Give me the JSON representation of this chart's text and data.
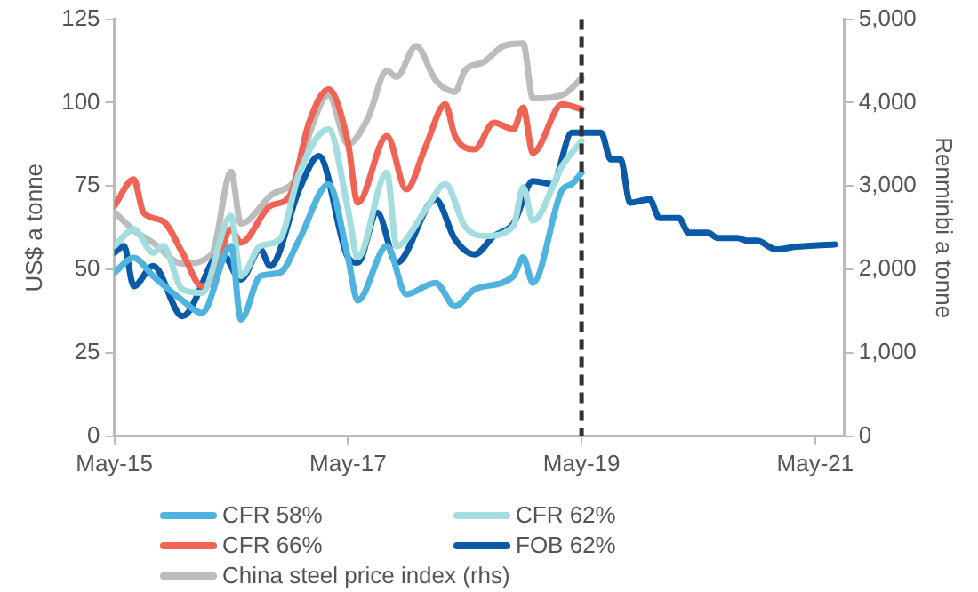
{
  "chart_data": {
    "type": "line",
    "ylabel": "US$ a tonne",
    "y2label": "Renminbi a tonne",
    "xlim": [
      "2015-05",
      "2021-08"
    ],
    "xticks": [
      {
        "value": "2015-05",
        "label": "May-15"
      },
      {
        "value": "2017-05",
        "label": "May-17"
      },
      {
        "value": "2019-05",
        "label": "May-19"
      },
      {
        "value": "2021-05",
        "label": "May-21"
      }
    ],
    "ylim": [
      0,
      125
    ],
    "yticks": [
      0,
      25,
      50,
      75,
      100,
      125
    ],
    "y2lim": [
      0,
      5000
    ],
    "y2ticks": [
      0,
      {
        "value": 1000,
        "label": "1,000"
      },
      {
        "value": 2000,
        "label": "2,000"
      },
      {
        "value": 3000,
        "label": "3,000"
      },
      {
        "value": 4000,
        "label": "4,000"
      },
      {
        "value": 5000,
        "label": "5,000"
      }
    ],
    "grid": false,
    "legend": "bottom",
    "marker": "none",
    "line_style": "solid",
    "ref_lines": [
      {
        "axis": "x",
        "value": "2019-05",
        "color": "#333333",
        "line_style": "dashed"
      }
    ],
    "series": [
      {
        "name": "CFR 58%",
        "color": "#4fb3e0",
        "x": [
          "2015-05",
          "2015-07",
          "2015-09",
          "2015-12",
          "2016-02",
          "2016-05",
          "2016-06",
          "2016-08",
          "2016-10",
          "2016-12",
          "2017-03",
          "2017-05",
          "2017-06",
          "2017-09",
          "2017-11",
          "2018-02",
          "2018-04",
          "2018-06",
          "2018-10",
          "2018-11",
          "2018-12",
          "2019-03",
          "2019-04",
          "2019-05"
        ],
        "values": [
          49,
          53.5,
          48,
          40.7,
          37,
          57,
          35,
          48,
          49,
          59,
          75.5,
          53.6,
          40.7,
          57,
          42.6,
          46,
          39,
          44,
          48,
          53.6,
          46,
          73.8,
          75.6,
          79
        ]
      },
      {
        "name": "CFR 62%",
        "color": "#a3dde0",
        "x": [
          "2015-05",
          "2015-07",
          "2015-09",
          "2015-10",
          "2015-12",
          "2016-02",
          "2016-05",
          "2016-06",
          "2016-08",
          "2016-10",
          "2016-12",
          "2017-03",
          "2017-05",
          "2017-06",
          "2017-09",
          "2017-10",
          "2018-01",
          "2018-03",
          "2018-05",
          "2018-07",
          "2018-10",
          "2018-11",
          "2018-12",
          "2019-03",
          "2019-05"
        ],
        "values": [
          57,
          62,
          55,
          57,
          44,
          43,
          66,
          48,
          57,
          59,
          79,
          92,
          68,
          53.6,
          79,
          57,
          68,
          75.6,
          63,
          60,
          63,
          74.7,
          64.6,
          81,
          88.5
        ]
      },
      {
        "name": "CFR 66%",
        "color": "#f06456",
        "x": [
          "2015-05",
          "2015-07",
          "2015-08",
          "2015-10",
          "2015-12",
          "2016-02",
          "2016-03",
          "2016-05",
          "2016-06",
          "2016-09",
          "2016-11",
          "2017-01",
          "2017-03",
          "2017-05",
          "2017-06",
          "2017-09",
          "2017-11",
          "2018-01",
          "2018-03",
          "2018-04",
          "2018-06",
          "2018-08",
          "2018-10",
          "2018-11",
          "2018-12",
          "2019-03",
          "2019-05"
        ],
        "values": [
          69,
          77,
          67,
          64.5,
          55,
          45,
          46,
          62,
          58,
          69,
          72,
          94,
          104,
          88,
          70,
          90,
          74,
          87,
          99.5,
          90,
          86,
          94,
          92,
          98.5,
          85,
          99.5,
          98
        ]
      },
      {
        "name": "FOB 62%",
        "color": "#0a5aa8",
        "x": [
          "2015-05",
          "2015-06",
          "2015-07",
          "2015-09",
          "2015-12",
          "2016-04",
          "2016-06",
          "2016-08",
          "2016-09",
          "2016-12",
          "2017-02",
          "2017-05",
          "2017-06",
          "2017-08",
          "2017-10",
          "2018-02",
          "2018-04",
          "2018-06",
          "2018-08",
          "2018-10",
          "2018-12",
          "2019-02",
          "2019-04",
          "2019-05",
          "2019-07",
          "2019-08",
          "2019-09",
          "2019-10",
          "2019-12",
          "2020-01",
          "2020-03",
          "2020-04",
          "2020-06",
          "2020-07",
          "2020-09",
          "2020-10",
          "2020-11",
          "2021-01",
          "2021-03",
          "2021-07"
        ],
        "values": [
          55,
          57,
          45,
          51,
          36,
          55,
          47,
          56,
          51,
          74,
          84,
          53.6,
          52,
          67,
          52,
          71,
          59,
          54.5,
          60,
          63.7,
          76.5,
          75.6,
          91,
          91,
          91,
          83,
          83,
          70,
          71,
          65.4,
          65.4,
          61,
          61,
          59.4,
          59.4,
          58.6,
          58.6,
          56,
          56.8,
          57.5
        ]
      },
      {
        "name": "China steel price index (rhs)",
        "color": "#bcbcbc",
        "axis": "y2",
        "x": [
          "2015-05",
          "2015-07",
          "2015-09",
          "2015-12",
          "2016-03",
          "2016-05",
          "2016-06",
          "2016-09",
          "2016-12",
          "2017-01",
          "2017-03",
          "2017-05",
          "2017-07",
          "2017-09",
          "2017-10",
          "2017-12",
          "2018-02",
          "2018-04",
          "2018-05",
          "2018-07",
          "2018-09",
          "2018-11",
          "2018-12",
          "2019-03",
          "2019-05"
        ],
        "values": [
          2690,
          2470,
          2320,
          2070,
          2180,
          3170,
          2550,
          2880,
          3170,
          3610,
          4090,
          3500,
          3800,
          4380,
          4310,
          4680,
          4270,
          4130,
          4380,
          4490,
          4680,
          4710,
          4050,
          4090,
          4290
        ]
      }
    ]
  }
}
